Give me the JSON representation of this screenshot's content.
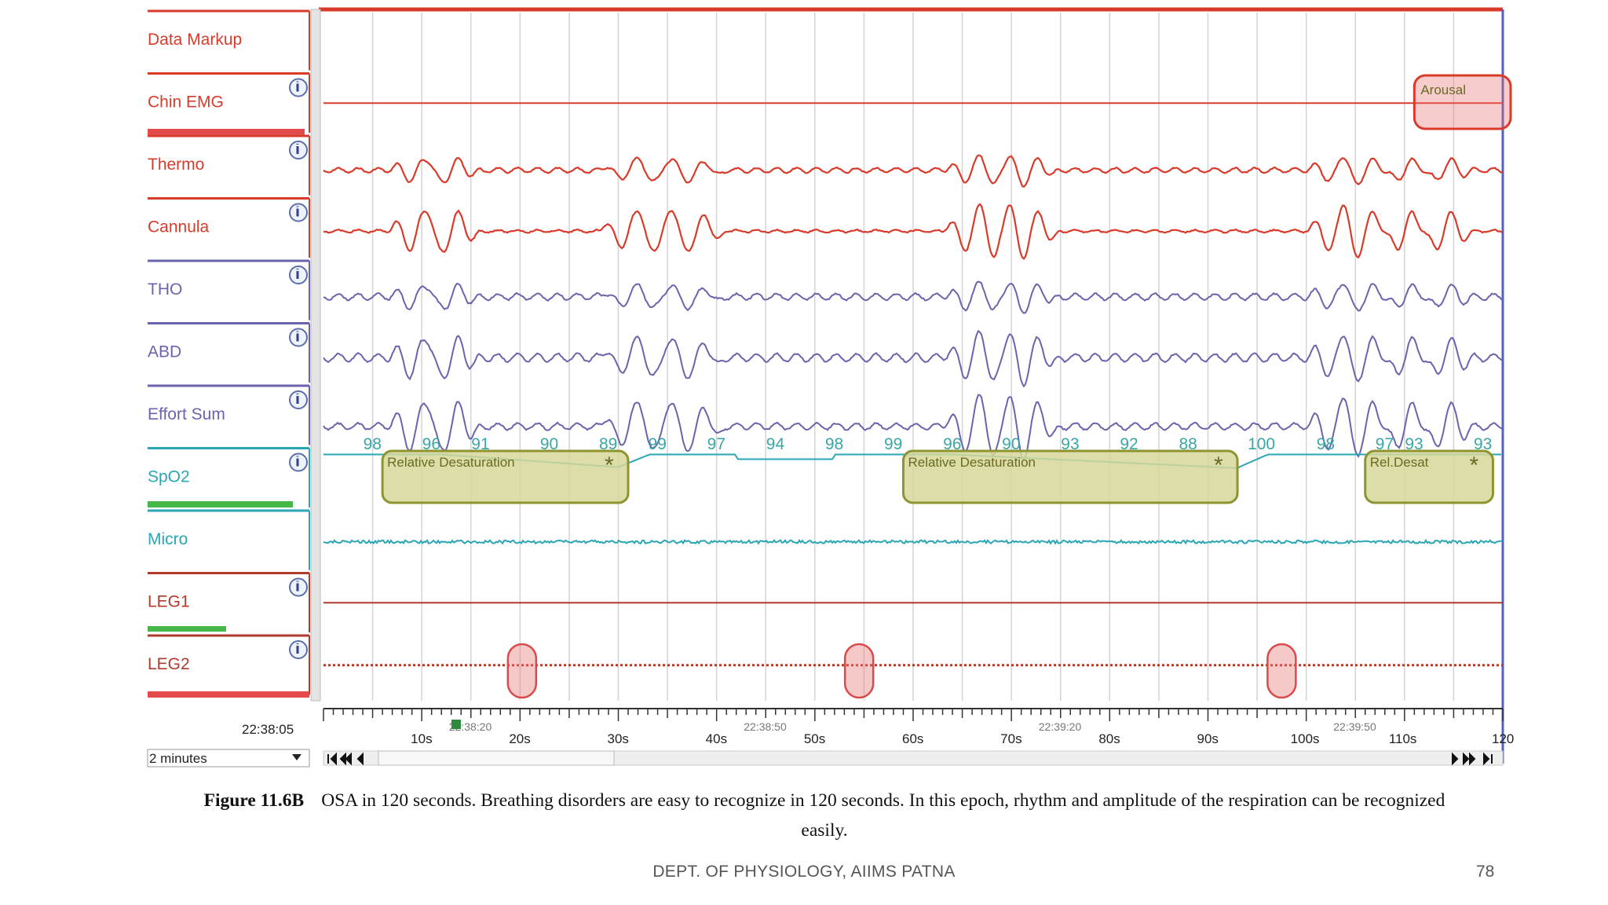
{
  "channels": [
    {
      "label": "Data Markup",
      "color": "#d93b2b",
      "info": false
    },
    {
      "label": "Chin EMG",
      "color": "#d93b2b",
      "info": true
    },
    {
      "label": "Thermo",
      "color": "#d93b2b",
      "info": true
    },
    {
      "label": "Cannula",
      "color": "#d93b2b",
      "info": true
    },
    {
      "label": "THO",
      "color": "#6a64ad",
      "info": true
    },
    {
      "label": "ABD",
      "color": "#6a64ad",
      "info": true
    },
    {
      "label": "Effort Sum",
      "color": "#6a64ad",
      "info": true
    },
    {
      "label": "SpO2",
      "color": "#2aa6b5",
      "info": true
    },
    {
      "label": "Micro",
      "color": "#2aa6b5",
      "info": false
    },
    {
      "label": "LEG1",
      "color": "#b23a2a",
      "info": true
    },
    {
      "label": "LEG2",
      "color": "#b23a2a",
      "info": true
    }
  ],
  "controls": {
    "start_time": "22:38:05",
    "epoch_window": "2 minutes"
  },
  "timeline": {
    "seconds_labels": [
      "10s",
      "20s",
      "30s",
      "40s",
      "50s",
      "60s",
      "70s",
      "80s",
      "90s",
      "100s",
      "110s",
      "120"
    ],
    "time_labels": [
      "22:38:20",
      "22:38:50",
      "22:39:20",
      "22:39:50"
    ]
  },
  "events": [
    {
      "label": "Relative Desaturation",
      "start_s": 6,
      "end_s": 31
    },
    {
      "label": "Relative Desaturation",
      "start_s": 59,
      "end_s": 93
    },
    {
      "label": "Rel.Desat",
      "start_s": 106,
      "end_s": 119
    },
    {
      "label": "Arousal",
      "start_s": 111,
      "end_s": 120
    }
  ],
  "leg_events_s": [
    20.2,
    54.5,
    97.5
  ],
  "spo2_values": [
    {
      "t": 5,
      "v": "98"
    },
    {
      "t": 11,
      "v": "96"
    },
    {
      "t": 16,
      "v": "91"
    },
    {
      "t": 23,
      "v": "90"
    },
    {
      "t": 29,
      "v": "89"
    },
    {
      "t": 34,
      "v": "99"
    },
    {
      "t": 40,
      "v": "97"
    },
    {
      "t": 46,
      "v": "94"
    },
    {
      "t": 52,
      "v": "98"
    },
    {
      "t": 58,
      "v": "99"
    },
    {
      "t": 64,
      "v": "96"
    },
    {
      "t": 70,
      "v": "90"
    },
    {
      "t": 76,
      "v": "93"
    },
    {
      "t": 82,
      "v": "92"
    },
    {
      "t": 88,
      "v": "88"
    },
    {
      "t": 95,
      "v": "100"
    },
    {
      "t": 102,
      "v": "98"
    },
    {
      "t": 108,
      "v": "97"
    },
    {
      "t": 111,
      "v": "93"
    },
    {
      "t": 118,
      "v": "93"
    }
  ],
  "caption": {
    "figure": "Figure 11.6B",
    "text": "OSA in 120 seconds. Breathing disorders are easy to recognize in 120 seconds. In this epoch, rhythm and amplitude of the respiration can be recognized easily."
  },
  "footer": {
    "dept": "DEPT. OF PHYSIOLOGY, AIIMS PATNA",
    "page": "78"
  },
  "colors": {
    "red": "#d93b2b",
    "purple": "#6a64ad",
    "teal": "#2aa6b5",
    "brown": "#b23a2a",
    "event_fill": "#d6d79a",
    "event_stroke": "#8e9430"
  }
}
